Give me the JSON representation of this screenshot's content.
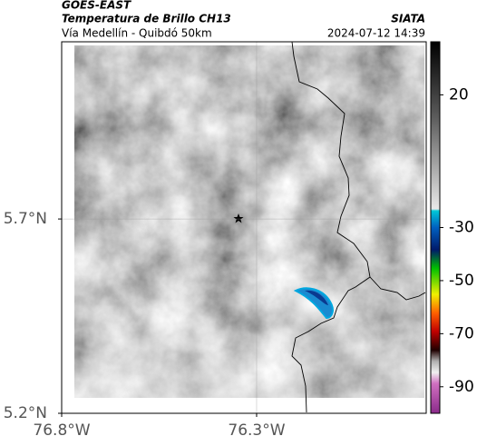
{
  "header": {
    "title": "GOES-EAST",
    "subtitle": "Temperatura de Brillo CH13",
    "source": "SIATA",
    "location": "Vía Medellín - Quibdó 50km",
    "timestamp": "2024-07-12 14:39"
  },
  "map": {
    "xlim": [
      -76.8,
      -75.865
    ],
    "ylim": [
      5.2,
      6.156
    ],
    "xticks": [
      {
        "value": -76.8,
        "label": "76.8°W"
      },
      {
        "value": -76.3,
        "label": "76.3°W"
      }
    ],
    "yticks": [
      {
        "value": 5.2,
        "label": "5.2°N"
      },
      {
        "value": 5.7,
        "label": "5.7°N"
      }
    ],
    "grid": true
  },
  "colorbar": {
    "clim": [
      -100,
      40
    ],
    "ticks": [
      20,
      -30,
      -50,
      -70,
      -90
    ]
  }
}
